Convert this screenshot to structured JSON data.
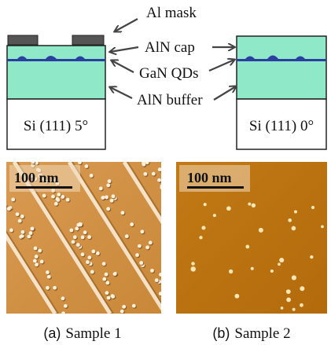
{
  "annotations": [
    "Al mask",
    "AlN cap",
    "GaN QDs",
    "AlN buffer"
  ],
  "samples": [
    {
      "substrate": "Si (111) 5°",
      "scale_bar": "100 nm",
      "panel": "(a)",
      "name": "Sample 1"
    },
    {
      "substrate": "Si (111) 0°",
      "scale_bar": "100 nm",
      "panel": "(b)",
      "name": "Sample 2"
    }
  ]
}
